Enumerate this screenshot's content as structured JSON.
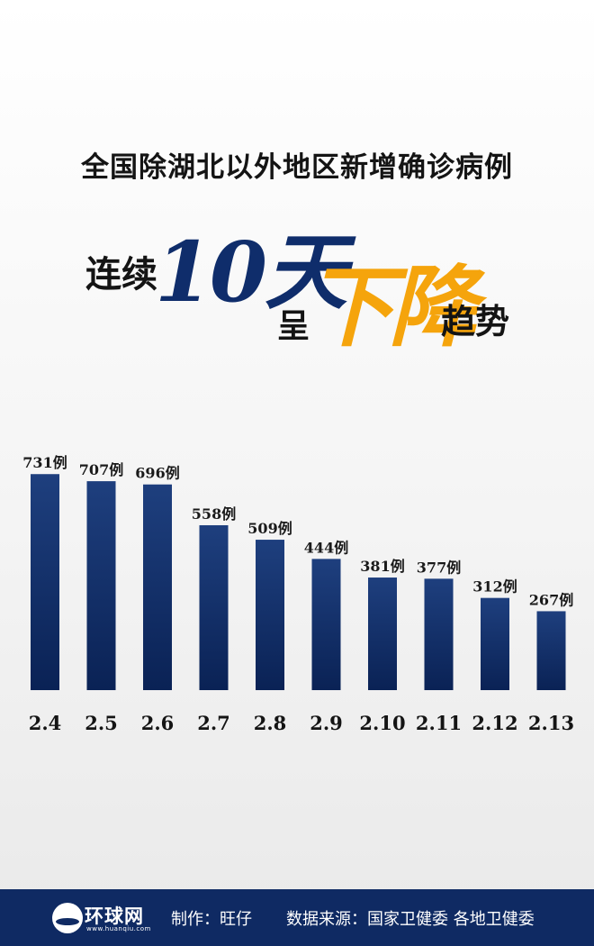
{
  "headline": "全国除湖北以外地区新增确诊病例",
  "subhead": {
    "lianxu": "连续",
    "days": "10天",
    "cheng": "呈",
    "down": "下降",
    "trend": "趋势"
  },
  "colors": {
    "bar_top": "#1e3f7e",
    "bar_bottom": "#0a2255",
    "accent": "#f5a40c",
    "footer": "#0f2a63"
  },
  "chart_data": {
    "type": "bar",
    "categories": [
      "2.4",
      "2.5",
      "2.6",
      "2.7",
      "2.8",
      "2.9",
      "2.10",
      "2.11",
      "2.12",
      "2.13"
    ],
    "values": [
      731,
      707,
      696,
      558,
      509,
      444,
      381,
      377,
      312,
      267
    ],
    "value_suffix": "例",
    "title": "",
    "xlabel": "",
    "ylabel": "",
    "grid": false,
    "axes_visible": false
  },
  "footer": {
    "logo_text": "环球网",
    "logo_url": "www.huanqiu.com",
    "maker": "制作：旺仔",
    "source": "数据来源：国家卫健委 各地卫健委"
  }
}
